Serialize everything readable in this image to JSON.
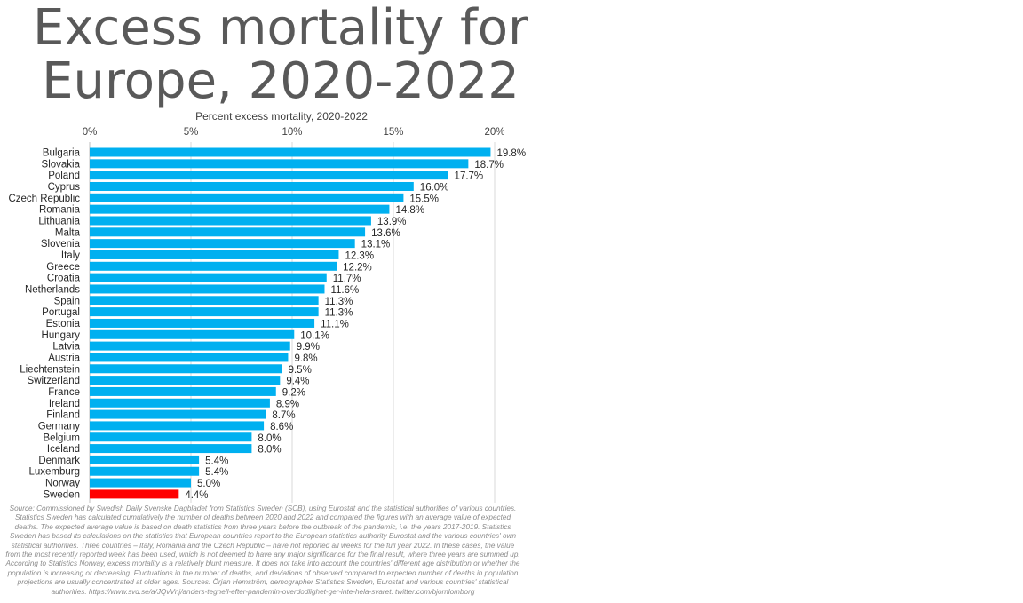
{
  "chart_data": {
    "type": "bar",
    "orientation": "horizontal",
    "title": "Excess mortality for Europe, 2020-2022",
    "xlabel": "Percent excess mortality, 2020-2022",
    "xlim": [
      0,
      20
    ],
    "x_ticks": [
      0,
      5,
      10,
      15,
      20
    ],
    "x_tick_labels": [
      "0%",
      "5%",
      "10%",
      "15%",
      "20%"
    ],
    "x_axis_position": "top",
    "grid": "vertical",
    "categories": [
      "Bulgaria",
      "Slovakia",
      "Poland",
      "Cyprus",
      "Czech Republic",
      "Romania",
      "Lithuania",
      "Malta",
      "Slovenia",
      "Italy",
      "Greece",
      "Croatia",
      "Netherlands",
      "Spain",
      "Portugal",
      "Estonia",
      "Hungary",
      "Latvia",
      "Austria",
      "Liechtenstein",
      "Switzerland",
      "France",
      "Ireland",
      "Finland",
      "Germany",
      "Belgium",
      "Iceland",
      "Denmark",
      "Luxemburg",
      "Norway",
      "Sweden"
    ],
    "values": [
      19.8,
      18.7,
      17.7,
      16.0,
      15.5,
      14.8,
      13.9,
      13.6,
      13.1,
      12.3,
      12.2,
      11.7,
      11.6,
      11.3,
      11.3,
      11.1,
      10.1,
      9.9,
      9.8,
      9.5,
      9.4,
      9.2,
      8.9,
      8.7,
      8.6,
      8.0,
      8.0,
      5.4,
      5.4,
      5.0,
      4.4
    ],
    "value_labels": [
      "19.8%",
      "18.7%",
      "17.7%",
      "16.0%",
      "15.5%",
      "14.8%",
      "13.9%",
      "13.6%",
      "13.1%",
      "12.3%",
      "12.2%",
      "11.7%",
      "11.6%",
      "11.3%",
      "11.3%",
      "11.1%",
      "10.1%",
      "9.9%",
      "9.8%",
      "9.5%",
      "9.4%",
      "9.2%",
      "8.9%",
      "8.7%",
      "8.6%",
      "8.0%",
      "8.0%",
      "5.4%",
      "5.4%",
      "5.0%",
      "4.4%"
    ],
    "bar_color": "#00b0f0",
    "highlight": {
      "category": "Sweden",
      "color": "#ff0000"
    }
  },
  "source_note": "Source: Commissioned by Swedish Daily Svenske Dagbladet from Statistics Sweden (SCB), using Eurostat and the statistical authorities of various countries. Statistics Sweden has calculated cumulatively the number of deaths between 2020 and 2022 and compared the figures with an average value of expected deaths. The expected average value is based on death statistics from three years before the outbreak of the pandemic, i.e. the years 2017-2019. Statistics Sweden has based its calculations on the statistics that European countries report to the European statistics authority Eurostat and the various countries' own statistical authorities. Three countries – Italy, Romania and the Czech Republic – have not reported all weeks for the full year 2022. In these cases, the value from the most recently reported week has been used, which is not deemed to have any major significance for the final result, where three years are summed up. According to Statistics Norway, excess mortality is a relatively blunt measure. It does not take into account the countries' different age distribution or whether the population is increasing or decreasing. Fluctuations in the number of deaths, and deviations of observed compared to expected number of deaths in population projections are usually concentrated at older ages. Sources: Örjan Hemström, demographer Statistics Sweden, Eurostat and various countries' statistical authorities. https://www.svd.se/a/JQvVnj/anders-tegnell-efter-pandemin-overdodlighet-ger-inte-hela-svaret. twitter.com/bjornlomborg"
}
